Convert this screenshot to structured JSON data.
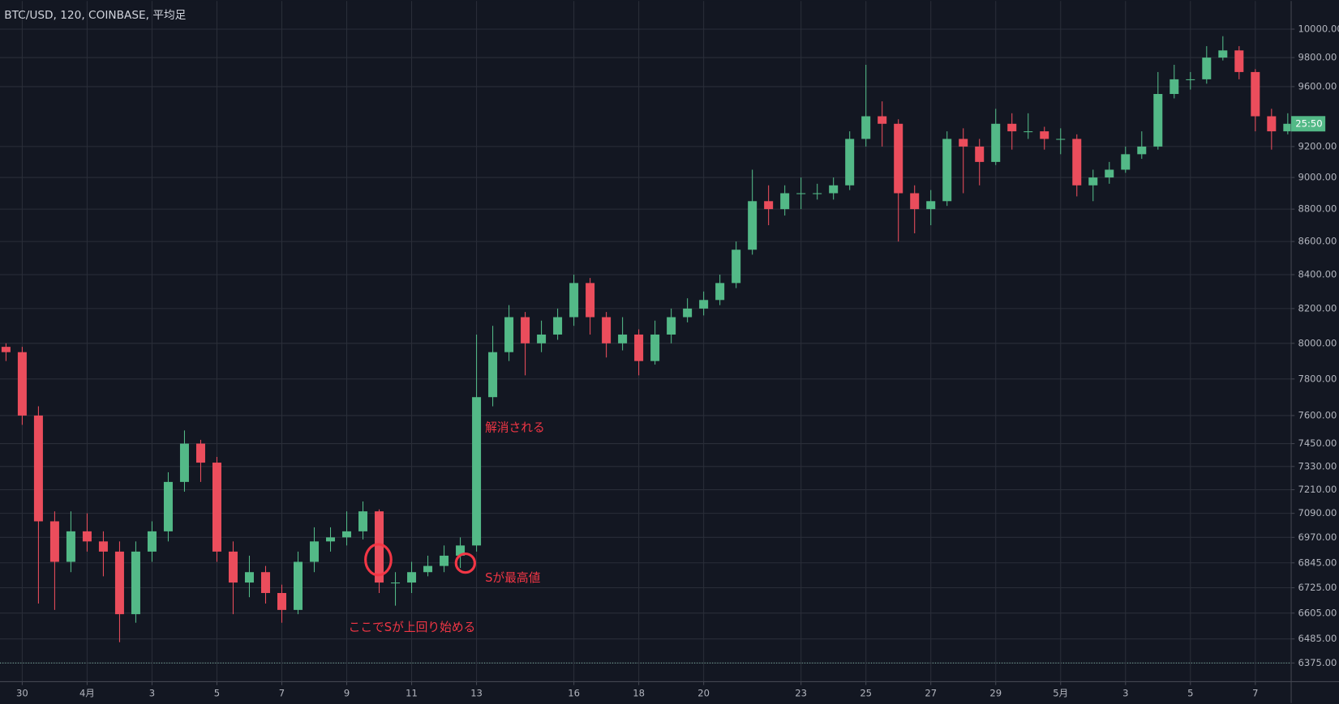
{
  "chart_data": {
    "type": "candlestick",
    "title": "BTC/USD, 120, COINBASE, 平均足",
    "price_label": "25:50",
    "annotations": [
      "ここでSが上回り始める",
      "解消される",
      "Sが最高値"
    ],
    "up_color": "#53b987",
    "down_color": "#eb4d5c",
    "log_scale": true,
    "grid": true,
    "xlim": [
      -0.37,
      79.21
    ],
    "xticks": [
      {
        "value": 1,
        "label": "30"
      },
      {
        "value": 5,
        "label": "4月"
      },
      {
        "value": 9,
        "label": "3"
      },
      {
        "value": 13,
        "label": "5"
      },
      {
        "value": 17,
        "label": "7"
      },
      {
        "value": 21,
        "label": "9"
      },
      {
        "value": 25,
        "label": "11"
      },
      {
        "value": 29,
        "label": "13"
      },
      {
        "value": 35,
        "label": "16"
      },
      {
        "value": 39,
        "label": "18"
      },
      {
        "value": 43,
        "label": "20"
      },
      {
        "value": 49,
        "label": "23"
      },
      {
        "value": 53,
        "label": "25"
      },
      {
        "value": 57,
        "label": "27"
      },
      {
        "value": 61,
        "label": "29"
      },
      {
        "value": 65,
        "label": "5月"
      },
      {
        "value": 69,
        "label": "3"
      },
      {
        "value": 73,
        "label": "5"
      },
      {
        "value": 77,
        "label": "7"
      }
    ],
    "ylim": [
      6291,
      10202
    ],
    "yticks": [
      {
        "value": 6375,
        "label": "6375.00"
      },
      {
        "value": 6485,
        "label": "6485.00"
      },
      {
        "value": 6605,
        "label": "6605.00"
      },
      {
        "value": 6725,
        "label": "6725.00"
      },
      {
        "value": 6845,
        "label": "6845.00"
      },
      {
        "value": 6970,
        "label": "6970.00"
      },
      {
        "value": 7090,
        "label": "7090.00"
      },
      {
        "value": 7210,
        "label": "7210.00"
      },
      {
        "value": 7330,
        "label": "7330.00"
      },
      {
        "value": 7450,
        "label": "7450.00"
      },
      {
        "value": 7600,
        "label": "7600.00"
      },
      {
        "value": 7800,
        "label": "7800.00"
      },
      {
        "value": 8000,
        "label": "8000.00"
      },
      {
        "value": 8200,
        "label": "8200.00"
      },
      {
        "value": 8400,
        "label": "8400.00"
      },
      {
        "value": 8600,
        "label": "8600.00"
      },
      {
        "value": 8800,
        "label": "8800.00"
      },
      {
        "value": 9000,
        "label": "9000.00"
      },
      {
        "value": 9200,
        "label": "9200.00"
      },
      {
        "value": 9600,
        "label": "9600.00"
      },
      {
        "value": 9800,
        "label": "9800.00"
      },
      {
        "value": 10000,
        "label": "10000.00"
      }
    ],
    "open": [
      7980,
      7950,
      7600,
      7050,
      6850,
      7000,
      6950,
      6900,
      6600,
      6900,
      7000,
      7250,
      7450,
      7350,
      6900,
      6750,
      6800,
      6700,
      6620,
      6850,
      6950,
      6970,
      7000,
      7100,
      6750,
      6750,
      6800,
      6830,
      6880,
      6930,
      7700,
      7950,
      8150,
      8000,
      8050,
      8150,
      8350,
      8150,
      8000,
      8050,
      7900,
      8050,
      8150,
      8200,
      8250,
      8350,
      8550,
      8850,
      8800,
      8900,
      8900,
      8900,
      8950,
      9250,
      9400,
      9350,
      8900,
      8800,
      8850,
      9250,
      9200,
      9100,
      9350,
      9300,
      9300,
      9250,
      9250,
      8950,
      9000,
      9050,
      9150,
      9200,
      9550,
      9650,
      9650,
      9800,
      9850,
      9700,
      9400,
      9300
    ],
    "high": [
      8000,
      7980,
      7650,
      7100,
      7100,
      7090,
      7000,
      6950,
      6950,
      7050,
      7300,
      7520,
      7470,
      7380,
      6950,
      6880,
      6830,
      6740,
      6900,
      7020,
      7020,
      7100,
      7150,
      7110,
      6800,
      6850,
      6880,
      6930,
      6970,
      8050,
      8100,
      8220,
      8180,
      8130,
      8200,
      8400,
      8380,
      8180,
      8150,
      8080,
      8130,
      8200,
      8260,
      8300,
      8400,
      8600,
      9050,
      8950,
      8950,
      9000,
      8960,
      9000,
      9300,
      9750,
      9500,
      9380,
      8950,
      8920,
      9300,
      9320,
      9250,
      9450,
      9420,
      9420,
      9330,
      9320,
      9280,
      9050,
      9100,
      9200,
      9300,
      9700,
      9750,
      9700,
      9880,
      9950,
      9880,
      9720,
      9450,
      9420
    ],
    "low": [
      7900,
      7550,
      6650,
      6620,
      6800,
      6900,
      6780,
      6470,
      6560,
      6850,
      6950,
      7200,
      7250,
      6850,
      6600,
      6680,
      6650,
      6560,
      6600,
      6800,
      6900,
      6930,
      6960,
      6700,
      6640,
      6700,
      6780,
      6800,
      6820,
      6900,
      7650,
      7900,
      7820,
      7950,
      8020,
      8100,
      8050,
      7920,
      7960,
      7820,
      7880,
      8000,
      8120,
      8160,
      8220,
      8320,
      8520,
      8700,
      8760,
      8800,
      8860,
      8860,
      8920,
      9200,
      9200,
      8600,
      8650,
      8700,
      8820,
      8900,
      8950,
      9080,
      9180,
      9250,
      9180,
      9150,
      8880,
      8850,
      8960,
      9030,
      9120,
      9180,
      9520,
      9580,
      9620,
      9780,
      9650,
      9300,
      9180,
      9280
    ],
    "close": [
      7950,
      7600,
      7050,
      6850,
      7000,
      6950,
      6900,
      6600,
      6900,
      7000,
      7250,
      7450,
      7350,
      6900,
      6750,
      6800,
      6700,
      6620,
      6850,
      6950,
      6970,
      7000,
      7100,
      6750,
      6750,
      6800,
      6830,
      6880,
      6930,
      7700,
      7950,
      8150,
      8000,
      8050,
      8150,
      8350,
      8150,
      8000,
      8050,
      7900,
      8050,
      8150,
      8200,
      8250,
      8350,
      8550,
      8850,
      8800,
      8900,
      8900,
      8900,
      8950,
      9250,
      9400,
      9350,
      8900,
      8800,
      8850,
      9250,
      9200,
      9100,
      9350,
      9300,
      9300,
      9250,
      9250,
      8950,
      9000,
      9050,
      9150,
      9200,
      9550,
      9650,
      9650,
      9800,
      9850,
      9700,
      9400,
      9300,
      9350
    ]
  }
}
